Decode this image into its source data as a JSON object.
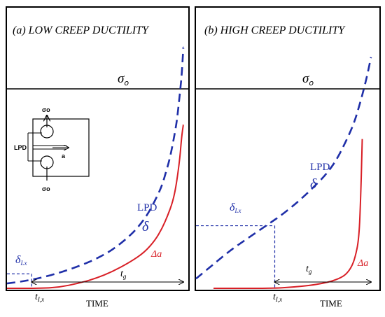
{
  "chart_data": [
    {
      "type": "line",
      "title": "(a) LOW CREEP DUCTILITY",
      "xlabel": "TIME",
      "stress_label": "σ",
      "stress_sub": "o",
      "x_ticks": [
        {
          "label": "t",
          "sub": "I,x"
        }
      ],
      "tg_label": {
        "main": "t",
        "sub": "g"
      },
      "series": [
        {
          "name": "LPD δ",
          "label_top": "LPD",
          "label_symbol": "δ",
          "color": "#1f2fa8",
          "style": "dashed",
          "x": [
            0,
            0.1,
            0.2,
            0.3,
            0.4,
            0.5,
            0.6,
            0.7,
            0.75,
            0.8,
            0.85,
            0.88,
            0.9,
            0.92,
            0.94,
            0.96,
            0.97,
            0.98,
            0.99,
            1.0
          ],
          "y": [
            0.02,
            0.03,
            0.045,
            0.065,
            0.09,
            0.12,
            0.16,
            0.22,
            0.26,
            0.31,
            0.38,
            0.43,
            0.48,
            0.53,
            0.6,
            0.68,
            0.74,
            0.81,
            0.88,
            1.0
          ]
        },
        {
          "name": "Δa",
          "label_symbol": "Δa",
          "color": "#d81f26",
          "style": "solid",
          "x": [
            0.0,
            0.2,
            0.3,
            0.4,
            0.5,
            0.6,
            0.7,
            0.78,
            0.84,
            0.88,
            0.91,
            0.94,
            0.96,
            0.98,
            0.99,
            1.0
          ],
          "y": [
            0.0,
            0.0,
            0.005,
            0.02,
            0.04,
            0.07,
            0.11,
            0.15,
            0.2,
            0.25,
            0.3,
            0.36,
            0.43,
            0.54,
            0.63,
            0.68
          ]
        }
      ],
      "delta_lx_label": {
        "main": "δ",
        "sub": "Lx"
      },
      "delta_lx_value": 0.06,
      "t_lx": 0.14,
      "ylim": [
        0,
        1.0
      ],
      "xlim": [
        0,
        1.0
      ],
      "stress_level": 0.8,
      "inset_labels": {
        "sigma_top": "σo",
        "sigma_bottom": "σo",
        "lpd": "LPD",
        "a": "a"
      }
    },
    {
      "type": "line",
      "title": "(b) HIGH CREEP DUCTILITY",
      "xlabel": "TIME",
      "stress_label": "σ",
      "stress_sub": "o",
      "x_ticks": [
        {
          "label": "t",
          "sub": "I,x"
        }
      ],
      "tg_label": {
        "main": "t",
        "sub": "g"
      },
      "series": [
        {
          "name": "LPD δ",
          "label_top": "LPD",
          "label_symbol": "δ",
          "color": "#1f2fa8",
          "style": "dashed",
          "x": [
            0,
            0.1,
            0.2,
            0.3,
            0.4,
            0.5,
            0.6,
            0.7,
            0.75,
            0.8,
            0.85,
            0.9,
            0.93,
            0.96,
            0.98,
            1.0
          ],
          "y": [
            0.04,
            0.1,
            0.16,
            0.21,
            0.26,
            0.31,
            0.37,
            0.44,
            0.48,
            0.53,
            0.6,
            0.68,
            0.75,
            0.83,
            0.89,
            0.96
          ]
        },
        {
          "name": "Δa",
          "label_symbol": "Δa",
          "color": "#d81f26",
          "style": "solid",
          "x": [
            0.1,
            0.45,
            0.55,
            0.65,
            0.72,
            0.78,
            0.83,
            0.86,
            0.89,
            0.91,
            0.93,
            0.94,
            0.95
          ],
          "y": [
            0.0,
            0.0,
            0.005,
            0.012,
            0.02,
            0.03,
            0.045,
            0.06,
            0.09,
            0.13,
            0.2,
            0.35,
            0.62
          ]
        }
      ],
      "delta_lx_label": {
        "main": "δ",
        "sub": "Lx"
      },
      "delta_lx_value": 0.26,
      "t_lx": 0.45,
      "ylim": [
        0,
        1.0
      ],
      "xlim": [
        0,
        1.0
      ],
      "stress_level": 0.8
    }
  ]
}
